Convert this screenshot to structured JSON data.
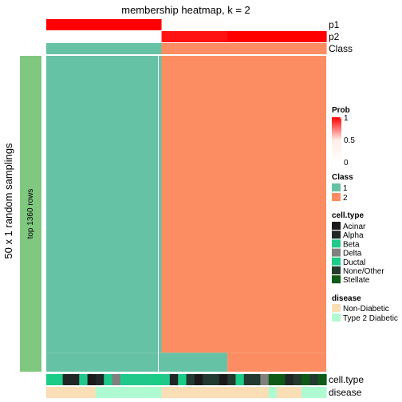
{
  "chart_data": {
    "type": "heatmap",
    "title": "membership heatmap, k = 2",
    "ylabel": "50 x 1 random samplings",
    "row_group_label": "top 1360 rows",
    "n_columns": 34,
    "column_split": [
      14,
      20
    ],
    "annotations_top": [
      {
        "name": "p1",
        "values": [
          1,
          1,
          1,
          1,
          1,
          1,
          1,
          1,
          1,
          1,
          1,
          1,
          1,
          1,
          0.04,
          0.04,
          0.04,
          0.04,
          0.04,
          0.04,
          0.04,
          0.04,
          0,
          0,
          0,
          0,
          0,
          0,
          0,
          0,
          0,
          0,
          0,
          0
        ]
      },
      {
        "name": "p2",
        "values": [
          0,
          0,
          0,
          0,
          0,
          0,
          0,
          0,
          0,
          0,
          0,
          0,
          0,
          0,
          0.96,
          0.96,
          0.96,
          0.96,
          0.96,
          0.96,
          0.96,
          0.96,
          1,
          1,
          1,
          1,
          1,
          1,
          1,
          1,
          1,
          1,
          1,
          1
        ]
      },
      {
        "name": "Class",
        "values": [
          1,
          1,
          1,
          1,
          1,
          1,
          1,
          1,
          1,
          1,
          1,
          1,
          1,
          1,
          2,
          2,
          2,
          2,
          2,
          2,
          2,
          2,
          2,
          2,
          2,
          2,
          2,
          2,
          2,
          2,
          2,
          2,
          2,
          2
        ]
      }
    ],
    "annotations_bottom": [
      {
        "name": "cell.type",
        "values": [
          "Ductal",
          "Ductal",
          "Alpha",
          "Alpha",
          "Beta",
          "Acinar",
          "Alpha",
          "Beta",
          "Delta",
          "Beta",
          "Beta",
          "Beta",
          "Beta",
          "Ductal",
          "Beta",
          "Alpha",
          "Ductal",
          "None/Other",
          "Acinar",
          "None/Other",
          "None/Other",
          "Acinar",
          "None/Other",
          "Ductal",
          "None/Other",
          "None/Other",
          "Delta",
          "Stellate",
          "Stellate",
          "Alpha",
          "None/Other",
          "Stellate",
          "None/Other",
          "Stellate"
        ]
      },
      {
        "name": "disease",
        "values": [
          "Non-Diabetic",
          "Non-Diabetic",
          "Non-Diabetic",
          "Non-Diabetic",
          "Non-Diabetic",
          "Non-Diabetic",
          "Type 2 Diabetic",
          "Type 2 Diabetic",
          "Type 2 Diabetic",
          "Type 2 Diabetic",
          "Type 2 Diabetic",
          "Type 2 Diabetic",
          "Type 2 Diabetic",
          "Type 2 Diabetic",
          "Non-Diabetic",
          "Non-Diabetic",
          "Non-Diabetic",
          "Non-Diabetic",
          "Non-Diabetic",
          "Non-Diabetic",
          "Non-Diabetic",
          "Non-Diabetic",
          "Non-Diabetic",
          "Non-Diabetic",
          "Non-Diabetic",
          "Non-Diabetic",
          "Non-Diabetic",
          "Type 2 Diabetic",
          "Non-Diabetic",
          "Non-Diabetic",
          "Non-Diabetic",
          "Type 2 Diabetic",
          "Type 2 Diabetic",
          "Type 2 Diabetic"
        ]
      }
    ],
    "membership_boundary": [
      {
        "rows": [
          0,
          0.94
        ],
        "class1_columns": 14
      },
      {
        "rows": [
          0.94,
          1.0
        ],
        "class1_columns": 22
      }
    ],
    "legends": {
      "prob": {
        "title": "Prob",
        "ticks": [
          "1",
          "0.5",
          "0"
        ]
      },
      "class": {
        "title": "Class",
        "labels": [
          "1",
          "2"
        ],
        "colors": [
          "#66C2A5",
          "#FC8D62"
        ]
      },
      "cell_type": {
        "title": "cell.type",
        "labels": [
          "Acinar",
          "Alpha",
          "Beta",
          "Delta",
          "Ductal",
          "None/Other",
          "Stellate"
        ],
        "colors": [
          "#1A1A1A",
          "#222626",
          "#20C98A",
          "#808080",
          "#1BCC87",
          "#223A30",
          "#0E5A16"
        ]
      },
      "disease": {
        "title": "disease",
        "labels": [
          "Non-Diabetic",
          "Type 2 Diabetic"
        ],
        "colors": [
          "#FADEB6",
          "#AFFBD1"
        ]
      }
    },
    "colors": {
      "prob_high": "#FF0000",
      "prob_mid": "#FDEDE6",
      "prob_low": "#FFFFFF",
      "row_group_bar": "#80C880"
    }
  }
}
